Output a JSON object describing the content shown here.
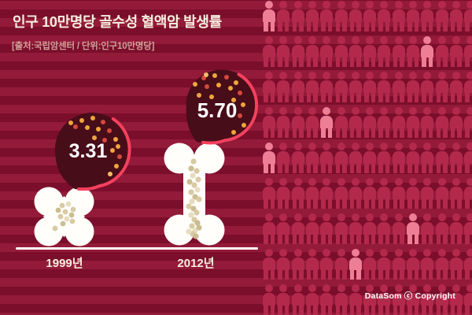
{
  "header": {
    "title": "인구 10만명당 골수성 혈액암 발생률",
    "subtitle": "[출처:국립암센터 / 단위:인구10만명당]"
  },
  "chart_data": {
    "type": "bar",
    "title": "인구 10만명당 골수성 혈액암 발생률",
    "source": "국립암센터",
    "unit": "인구10만명당",
    "categories": [
      "1999년",
      "2012년"
    ],
    "values": [
      3.31,
      5.7
    ],
    "value_labels": [
      "3.31",
      "5.70"
    ],
    "grid": false,
    "legend_position": "none"
  },
  "pictogram": {
    "rows": 9,
    "cols": 15,
    "highlighted": [
      [
        0,
        0
      ],
      [
        1,
        11
      ],
      [
        3,
        4
      ],
      [
        4,
        0
      ],
      [
        6,
        10
      ],
      [
        7,
        6
      ]
    ]
  },
  "footer": {
    "copyright": "DataSom ⓒ Copyright"
  },
  "colors": {
    "stripe_light": "#931b39",
    "stripe_dark": "#7b0e2b",
    "person": "#b3294c",
    "person_highlight": "#ee7e95",
    "balloon": "#470d18",
    "balloon_edge": "#f4415e",
    "bone": "#fffefb",
    "title_text": "#f6efdf",
    "subtitle_text": "#d2a09a",
    "copyright_text": "#ffffff"
  }
}
